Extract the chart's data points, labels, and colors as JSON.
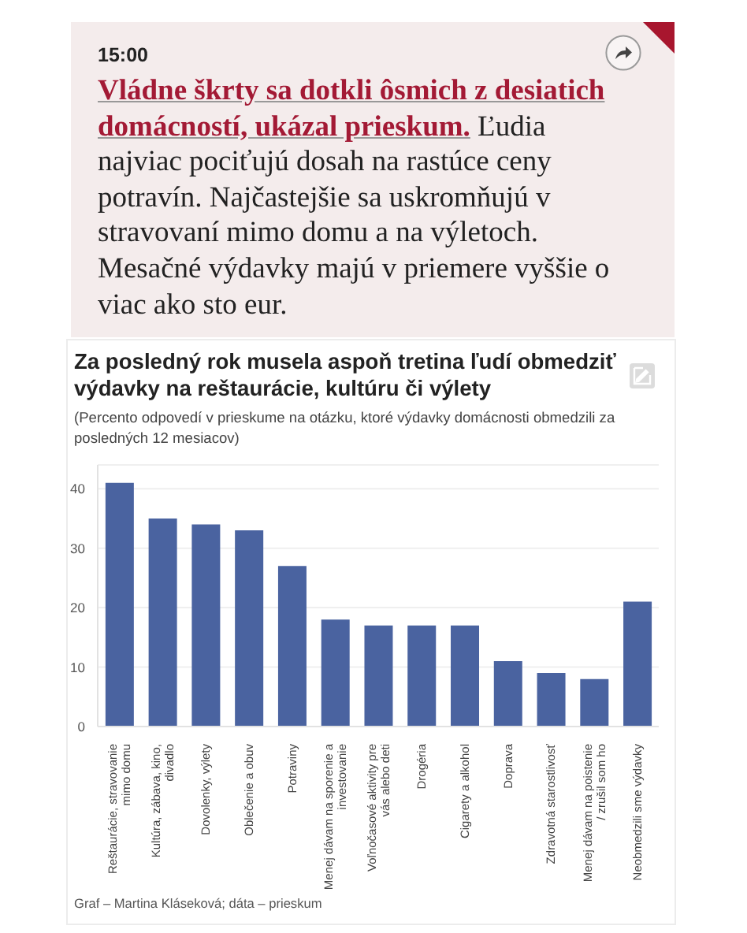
{
  "chart_data": {
    "type": "bar",
    "title": "Za posledný rok musela aspoň tretina ľudí obmedziť výdavky na reštaurácie, kultúru či výlety",
    "subtitle": "(Percento odpovedí v prieskume na otázku, ktoré výdavky domácnosti obmedzili za posledných 12 mesiacov)",
    "annotations": [
      "15:00",
      "Vládne škrty sa dotkli ôsmich z desiatich domácností, ukázal prieskum.",
      "Ľudia najviac pociťujú dosah na rastúce ceny potravín. Najčastejšie sa uskromňujú v stravovaní mimo domu a na výletoch. Mesačné výdavky majú v priemere vyššie o viac ako sto eur.",
      "Graf – Martina Kláseková; dáta – prieskum"
    ],
    "categories": [
      "Reštaurácie, stravovanie mimo domu",
      "Kultúra, zábava, kino, divadlo",
      "Dovolenky, výlety",
      "Oblečenie a obuv",
      "Potraviny",
      "Menej dávam na sporenie a investovanie",
      "Voľnočasové aktivity pre vás alebo deti",
      "Drogéria",
      "Cigarety a alkohol",
      "Doprava",
      "Zdravotná starostlivosť",
      "Menej dávam na poistenie / zrušil som ho",
      "Neobmedzili sme výdavky"
    ],
    "values": [
      41,
      35,
      34,
      33,
      27,
      18,
      17,
      17,
      17,
      11,
      9,
      8,
      21
    ],
    "color": "#4a63a0",
    "ylim": [
      0,
      44
    ],
    "yticks": [
      0,
      10,
      20,
      30,
      40
    ],
    "grid": "y"
  }
}
